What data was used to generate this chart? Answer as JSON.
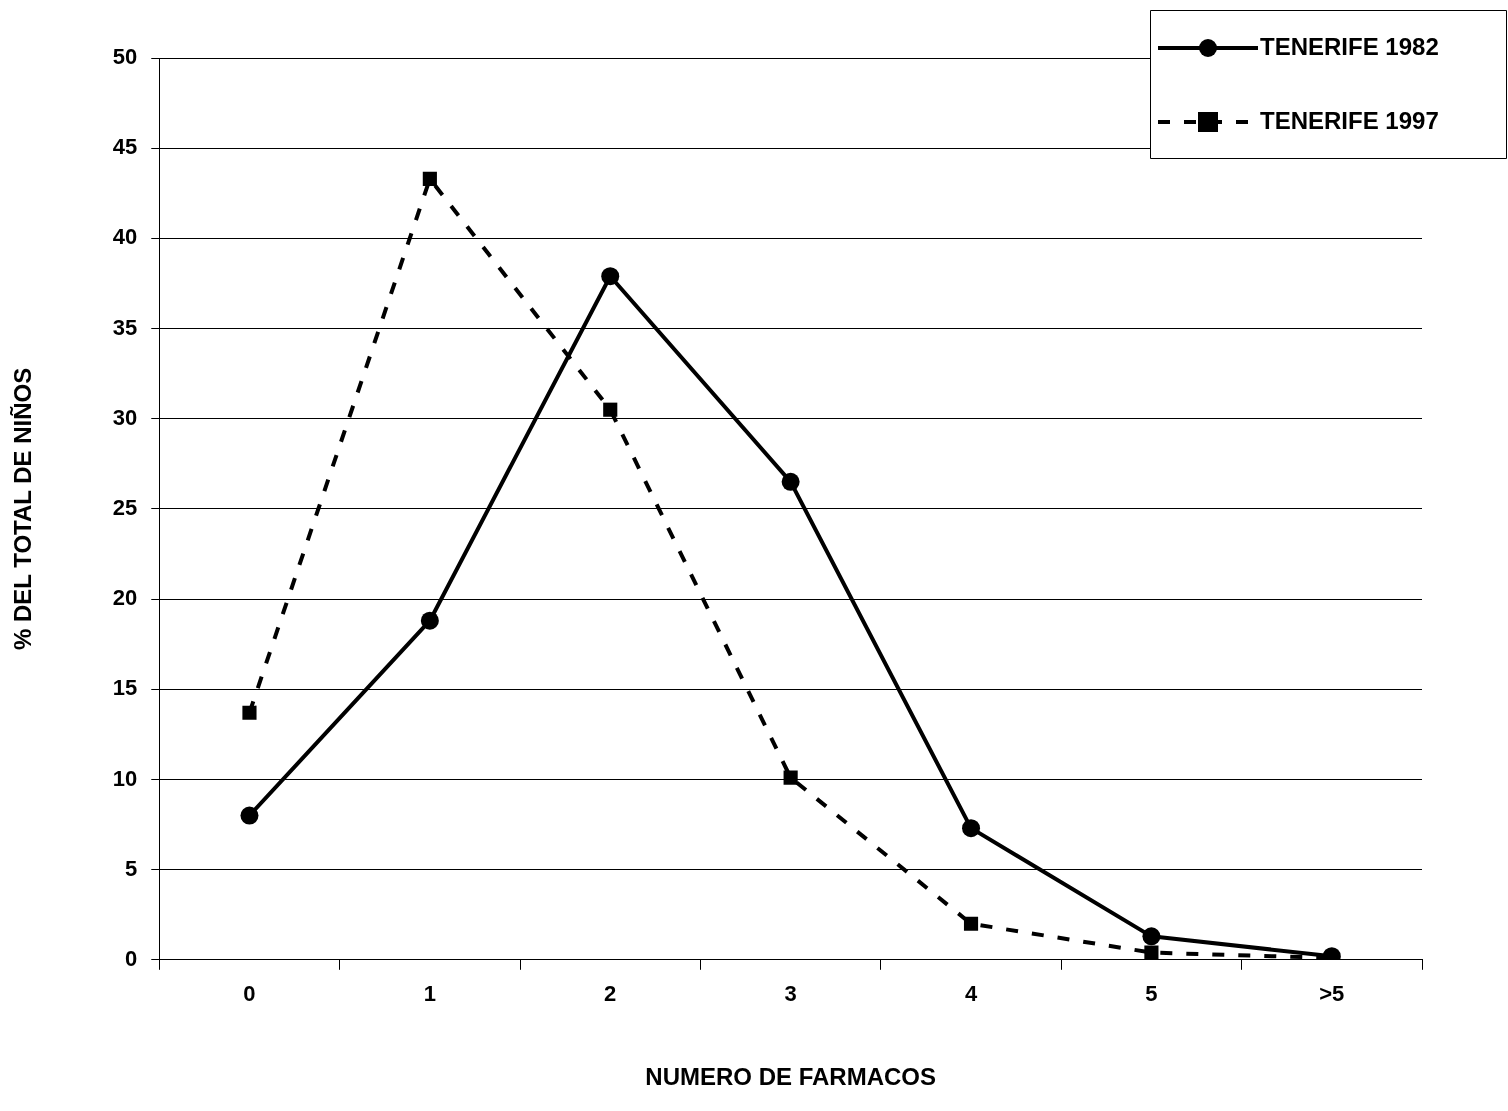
{
  "chart_data": {
    "type": "line",
    "xlabel": "NUMERO DE FARMACOS",
    "ylabel": "% DEL TOTAL DE NIÑOS",
    "categories": [
      "0",
      "1",
      "2",
      "3",
      "4",
      "5",
      ">5"
    ],
    "series": [
      {
        "name": "TENERIFE 1982",
        "color": "#000000",
        "values": [
          8.0,
          18.8,
          37.9,
          26.5,
          7.3,
          1.3,
          0.2
        ],
        "marker": "circle",
        "line_style": "solid"
      },
      {
        "name": "TENERIFE 1997",
        "color": "#000000",
        "values": [
          13.7,
          43.3,
          30.5,
          10.1,
          2.0,
          0.4,
          0.1
        ],
        "marker": "square",
        "line_style": "dashed"
      }
    ],
    "ylim": [
      0,
      50
    ],
    "yticks": [
      0,
      5,
      10,
      15,
      20,
      25,
      30,
      35,
      40,
      45,
      50
    ],
    "grid": "y",
    "legend": "top right"
  }
}
